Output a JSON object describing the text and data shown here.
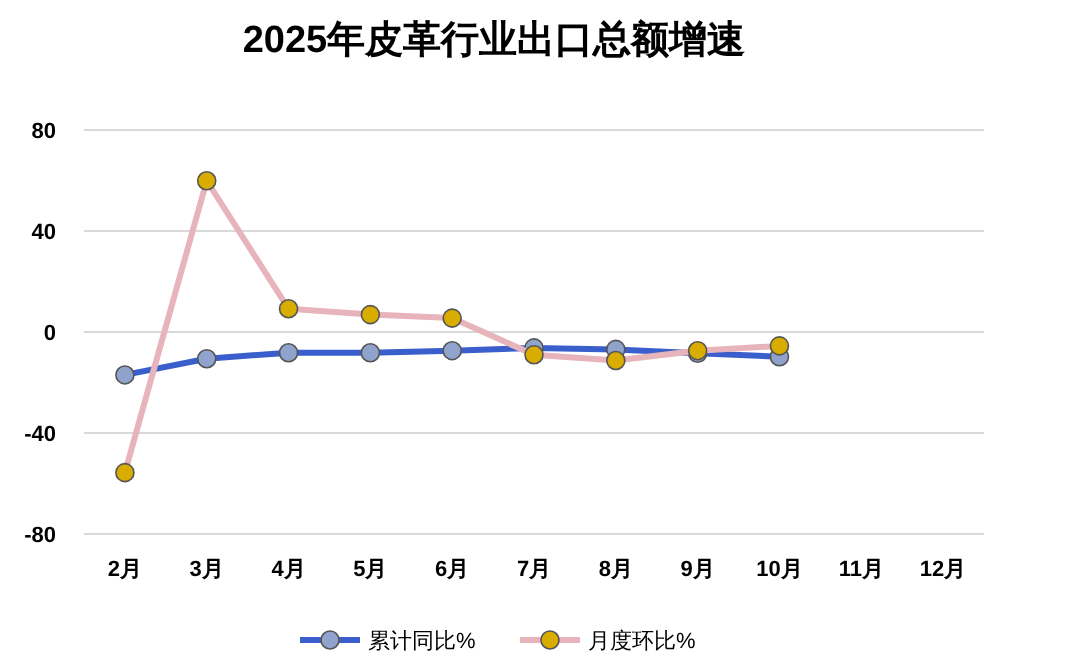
{
  "chart_data": {
    "type": "line",
    "title": "2025年皮革行业出口总额增速",
    "categories": [
      "2月",
      "3月",
      "4月",
      "5月",
      "6月",
      "7月",
      "8月",
      "9月",
      "10月",
      "11月",
      "12月"
    ],
    "series": [
      {
        "name": "累计同比%",
        "color": "#3a5fcd",
        "colors": [
          "#8fa3cc",
          "#8fa3cc",
          "#8fa3cc",
          "#8fa3cc",
          "#8fa3cc",
          "#8fa3cc",
          "#8fa3cc",
          "#8fa3cc",
          "#8fa3cc",
          null,
          null
        ],
        "values": [
          -17,
          -10.6,
          -8.2,
          -8.2,
          -7.4,
          -6.3,
          -6.9,
          -8.4,
          -9.8,
          null,
          null
        ]
      },
      {
        "name": "月度环比%",
        "color": "#e8b4bc",
        "colors": [
          "#d9ad00",
          "#d9ad00",
          "#d9ad00",
          "#d9ad00",
          "#d9ad00",
          "#d9ad00",
          "#d9ad00",
          "#d9ad00",
          "#d9ad00",
          null,
          null
        ],
        "values": [
          -55.7,
          59.9,
          9.2,
          6.9,
          5.5,
          -9,
          -11.3,
          -7.4,
          -5.5,
          null,
          null
        ]
      }
    ],
    "ylim": [
      -80,
      80
    ],
    "yticks": [
      -80,
      -40,
      0,
      40,
      80
    ],
    "grid": "y",
    "legend": "bottom",
    "marker": "circle",
    "line_style": "solid"
  }
}
